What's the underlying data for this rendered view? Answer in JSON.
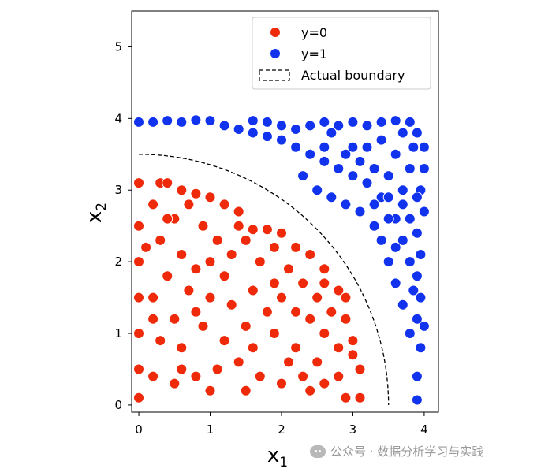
{
  "chart_data": {
    "type": "scatter",
    "title": "",
    "xlabel": "x",
    "xlabel_sub": "1",
    "ylabel": "x",
    "ylabel_sub": "2",
    "xlim": [
      -0.1,
      4.2
    ],
    "ylim": [
      -0.1,
      5.5
    ],
    "xticks": [
      0,
      1,
      2,
      3,
      4
    ],
    "yticks": [
      0,
      1,
      2,
      3,
      4,
      5
    ],
    "grid": false,
    "legend_position": "top-right",
    "boundary": {
      "name": "Actual boundary",
      "shape": "quarter-circle",
      "radius": 3.5,
      "color": "#000000",
      "dash": true
    },
    "series": [
      {
        "name": "y=0",
        "color": "#ee2a0b",
        "points": [
          [
            0.0,
            3.1
          ],
          [
            0.3,
            3.1
          ],
          [
            0.4,
            3.1
          ],
          [
            0.6,
            3.0
          ],
          [
            0.8,
            2.95
          ],
          [
            1.0,
            2.9
          ],
          [
            1.2,
            2.8
          ],
          [
            1.4,
            2.7
          ],
          [
            1.6,
            2.45
          ],
          [
            1.8,
            2.45
          ],
          [
            2.0,
            2.4
          ],
          [
            2.2,
            2.2
          ],
          [
            2.4,
            2.1
          ],
          [
            2.6,
            1.9
          ],
          [
            2.8,
            1.6
          ],
          [
            2.9,
            1.2
          ],
          [
            3.0,
            0.9
          ],
          [
            3.1,
            0.5
          ],
          [
            3.1,
            0.1
          ],
          [
            2.9,
            0.1
          ],
          [
            0.0,
            0.1
          ],
          [
            0.0,
            0.5
          ],
          [
            0.0,
            1.0
          ],
          [
            0.0,
            1.5
          ],
          [
            0.0,
            2.0
          ],
          [
            0.0,
            2.5
          ],
          [
            0.2,
            2.8
          ],
          [
            0.5,
            2.6
          ],
          [
            0.3,
            2.3
          ],
          [
            0.6,
            2.1
          ],
          [
            0.9,
            2.5
          ],
          [
            1.1,
            2.3
          ],
          [
            0.8,
            1.9
          ],
          [
            1.3,
            2.1
          ],
          [
            1.5,
            2.3
          ],
          [
            1.2,
            1.8
          ],
          [
            1.7,
            2.0
          ],
          [
            1.9,
            2.2
          ],
          [
            2.1,
            1.9
          ],
          [
            1.6,
            1.6
          ],
          [
            2.3,
            1.7
          ],
          [
            2.0,
            1.5
          ],
          [
            2.5,
            1.5
          ],
          [
            2.7,
            1.3
          ],
          [
            2.4,
            1.2
          ],
          [
            2.6,
            1.0
          ],
          [
            2.8,
            0.8
          ],
          [
            2.5,
            0.6
          ],
          [
            2.2,
            0.8
          ],
          [
            1.9,
            1.0
          ],
          [
            1.8,
            1.3
          ],
          [
            1.5,
            1.1
          ],
          [
            1.3,
            1.4
          ],
          [
            1.0,
            1.5
          ],
          [
            0.7,
            1.6
          ],
          [
            0.4,
            1.8
          ],
          [
            0.2,
            1.5
          ],
          [
            0.5,
            1.2
          ],
          [
            0.3,
            0.9
          ],
          [
            0.6,
            0.8
          ],
          [
            0.9,
            1.1
          ],
          [
            1.2,
            0.9
          ],
          [
            1.4,
            0.6
          ],
          [
            1.1,
            0.5
          ],
          [
            0.8,
            0.4
          ],
          [
            0.5,
            0.3
          ],
          [
            0.2,
            0.4
          ],
          [
            1.7,
            0.4
          ],
          [
            2.0,
            0.3
          ],
          [
            2.3,
            0.4
          ],
          [
            2.6,
            0.3
          ],
          [
            2.8,
            0.4
          ],
          [
            1.6,
            0.8
          ],
          [
            2.1,
            0.6
          ],
          [
            1.0,
            0.2
          ],
          [
            1.5,
            0.2
          ],
          [
            2.4,
            0.2
          ],
          [
            0.4,
            2.6
          ],
          [
            0.7,
            2.8
          ],
          [
            1.4,
            2.5
          ],
          [
            1.0,
            2.0
          ],
          [
            0.1,
            2.2
          ],
          [
            0.8,
            1.3
          ],
          [
            1.9,
            1.7
          ],
          [
            2.2,
            1.3
          ],
          [
            2.6,
            1.7
          ],
          [
            2.9,
            1.5
          ],
          [
            3.0,
            0.7
          ],
          [
            0.2,
            1.2
          ],
          [
            0.6,
            0.5
          ]
        ]
      },
      {
        "name": "y=1",
        "color": "#1133ee",
        "points": [
          [
            0.0,
            3.95
          ],
          [
            0.2,
            3.95
          ],
          [
            0.4,
            3.97
          ],
          [
            0.6,
            3.95
          ],
          [
            0.8,
            3.98
          ],
          [
            1.0,
            3.97
          ],
          [
            1.2,
            3.9
          ],
          [
            1.4,
            3.85
          ],
          [
            1.6,
            3.8
          ],
          [
            1.8,
            3.75
          ],
          [
            2.0,
            3.7
          ],
          [
            2.2,
            3.6
          ],
          [
            2.4,
            3.5
          ],
          [
            2.6,
            3.4
          ],
          [
            2.8,
            3.3
          ],
          [
            3.0,
            3.2
          ],
          [
            3.2,
            3.1
          ],
          [
            3.4,
            2.9
          ],
          [
            3.6,
            2.6
          ],
          [
            3.7,
            2.3
          ],
          [
            3.8,
            2.0
          ],
          [
            3.85,
            1.6
          ],
          [
            3.9,
            1.2
          ],
          [
            3.95,
            0.8
          ],
          [
            3.9,
            0.4
          ],
          [
            3.9,
            0.07
          ],
          [
            1.6,
            3.97
          ],
          [
            1.8,
            3.95
          ],
          [
            2.0,
            3.9
          ],
          [
            2.2,
            3.85
          ],
          [
            2.4,
            3.9
          ],
          [
            2.6,
            3.95
          ],
          [
            2.8,
            3.9
          ],
          [
            3.0,
            3.95
          ],
          [
            3.2,
            3.9
          ],
          [
            3.4,
            3.95
          ],
          [
            3.6,
            3.97
          ],
          [
            3.8,
            3.95
          ],
          [
            3.9,
            3.8
          ],
          [
            4.0,
            3.6
          ],
          [
            4.0,
            3.3
          ],
          [
            3.95,
            3.0
          ],
          [
            4.0,
            2.7
          ],
          [
            3.9,
            2.4
          ],
          [
            3.95,
            2.1
          ],
          [
            3.9,
            1.8
          ],
          [
            3.95,
            1.5
          ],
          [
            4.0,
            1.1
          ],
          [
            2.3,
            3.2
          ],
          [
            2.5,
            3.0
          ],
          [
            2.7,
            2.9
          ],
          [
            2.9,
            2.8
          ],
          [
            3.1,
            2.7
          ],
          [
            3.3,
            2.5
          ],
          [
            3.4,
            2.3
          ],
          [
            3.5,
            2.0
          ],
          [
            3.6,
            1.7
          ],
          [
            3.7,
            1.4
          ],
          [
            3.8,
            1.0
          ],
          [
            2.6,
            3.6
          ],
          [
            2.9,
            3.5
          ],
          [
            3.1,
            3.4
          ],
          [
            3.3,
            3.3
          ],
          [
            3.5,
            3.2
          ],
          [
            3.7,
            3.0
          ],
          [
            3.6,
            3.5
          ],
          [
            3.8,
            3.3
          ],
          [
            3.7,
            2.8
          ],
          [
            3.5,
            2.6
          ],
          [
            3.3,
            2.8
          ],
          [
            3.8,
            2.6
          ],
          [
            3.6,
            2.2
          ],
          [
            3.9,
            2.9
          ],
          [
            3.2,
            3.6
          ],
          [
            2.7,
            3.8
          ],
          [
            3.4,
            3.7
          ],
          [
            3.0,
            3.6
          ],
          [
            3.7,
            3.8
          ],
          [
            3.5,
            2.9
          ],
          [
            3.85,
            3.6
          ]
        ]
      }
    ]
  },
  "watermark": {
    "text": "公众号 · 数据分析学习与实践"
  }
}
